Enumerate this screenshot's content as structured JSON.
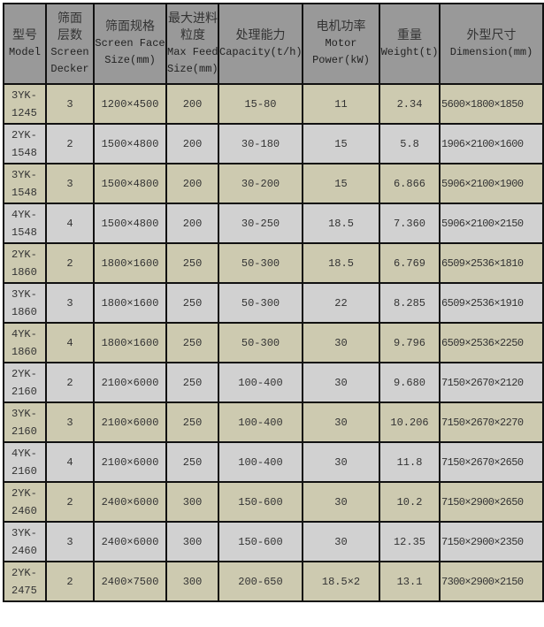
{
  "colors": {
    "header": "#999999",
    "row_odd": "#cdcab0",
    "row_even": "#d1d1d1",
    "border": "#111111"
  },
  "headers": [
    {
      "cn": "型号",
      "en": [
        "Model"
      ]
    },
    {
      "cn": "筛面层数",
      "en": [
        "Screen",
        "Decker"
      ]
    },
    {
      "cn": "筛面规格",
      "en": [
        "Screen Face",
        "Size(mm)"
      ]
    },
    {
      "cn": "最大进料粒度",
      "en": [
        "Max Feed",
        "Size(mm)"
      ]
    },
    {
      "cn": "处理能力",
      "en": [
        "Capacity(t/h)"
      ]
    },
    {
      "cn": "电机功率",
      "en": [
        "Motor",
        "Power(kW)"
      ]
    },
    {
      "cn": "重量",
      "en": [
        "Weight(t)"
      ]
    },
    {
      "cn": "外型尺寸",
      "en": [
        "Dimension(mm)"
      ]
    }
  ],
  "rows": [
    [
      "3YK-1245",
      "3",
      "1200×4500",
      "200",
      "15-80",
      "11",
      "2.34",
      "5600×1800×1850"
    ],
    [
      "2YK-1548",
      "2",
      "1500×4800",
      "200",
      "30-180",
      "15",
      "5.8",
      "1906×2100×1600"
    ],
    [
      "3YK-1548",
      "3",
      "1500×4800",
      "200",
      "30-200",
      "15",
      "6.866",
      "5906×2100×1900"
    ],
    [
      "4YK-1548",
      "4",
      "1500×4800",
      "200",
      "30-250",
      "18.5",
      "7.360",
      "5906×2100×2150"
    ],
    [
      "2YK-1860",
      "2",
      "1800×1600",
      "250",
      "50-300",
      "18.5",
      "6.769",
      "6509×2536×1810"
    ],
    [
      "3YK-1860",
      "3",
      "1800×1600",
      "250",
      "50-300",
      "22",
      "8.285",
      "6509×2536×1910"
    ],
    [
      "4YK-1860",
      "4",
      "1800×1600",
      "250",
      "50-300",
      "30",
      "9.796",
      "6509×2536×2250"
    ],
    [
      "2YK-2160",
      "2",
      "2100×6000",
      "250",
      "100-400",
      "30",
      "9.680",
      "7150×2670×2120"
    ],
    [
      "3YK-2160",
      "3",
      "2100×6000",
      "250",
      "100-400",
      "30",
      "10.206",
      "7150×2670×2270"
    ],
    [
      "4YK-2160",
      "4",
      "2100×6000",
      "250",
      "100-400",
      "30",
      "11.8",
      "7150×2670×2650"
    ],
    [
      "2YK-2460",
      "2",
      "2400×6000",
      "300",
      "150-600",
      "30",
      "10.2",
      "7150×2900×2650"
    ],
    [
      "3YK-2460",
      "3",
      "2400×6000",
      "300",
      "150-600",
      "30",
      "12.35",
      "7150×2900×2350"
    ],
    [
      "2YK-2475",
      "2",
      "2400×7500",
      "300",
      "200-650",
      "18.5×2",
      "13.1",
      "7300×2900×2150"
    ]
  ]
}
